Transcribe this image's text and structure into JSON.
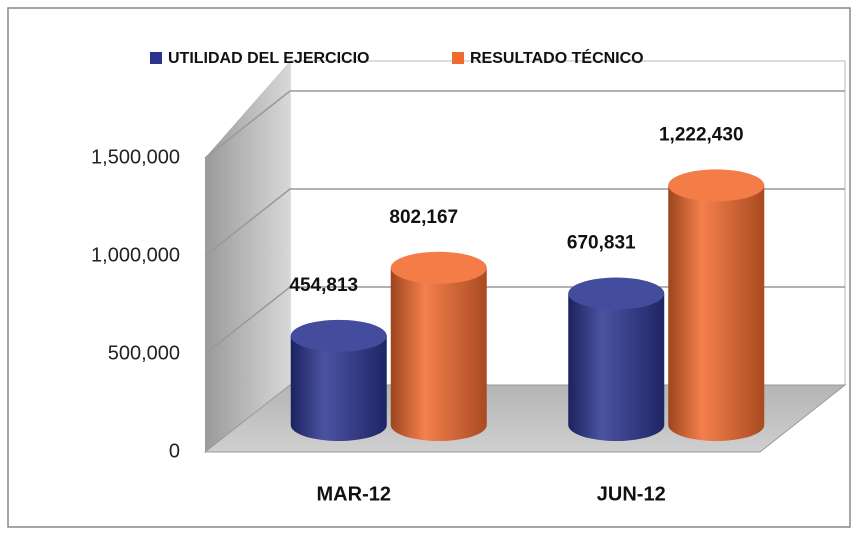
{
  "chart_data": {
    "type": "bar",
    "categories": [
      "MAR-12",
      "JUN-12"
    ],
    "series": [
      {
        "name": "UTILIDAD DEL EJERCICIO",
        "color": "#2b3590",
        "values": [
          454813,
          670831
        ],
        "value_labels": [
          "454,813",
          "670,831"
        ]
      },
      {
        "name": "RESULTADO TÉCNICO",
        "color": "#f26a2e",
        "values": [
          802167,
          1222430
        ],
        "value_labels": [
          "802,167",
          "1,222,430"
        ]
      }
    ],
    "ylim": [
      0,
      1500000
    ],
    "yticks": [
      0,
      {
        "value": 500000,
        "label": "500,000"
      },
      {
        "value": 1000000,
        "label": "1,000,000"
      },
      {
        "value": 1500000,
        "label": "1,500,000"
      }
    ],
    "grid": true,
    "legend": "top"
  }
}
